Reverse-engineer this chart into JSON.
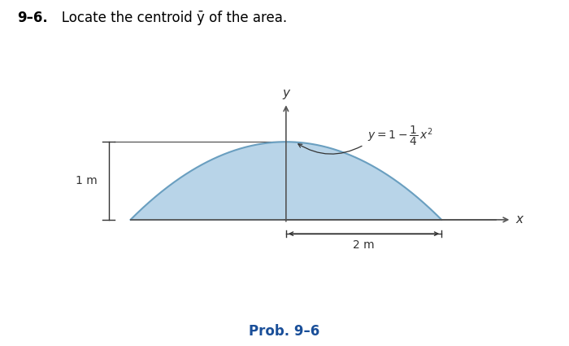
{
  "title_bold": "9–6.",
  "title_rest": "   Locate the centroid ȳ of the area.",
  "prob_label": "Prob. 9–6",
  "dim_label_y": "1 m",
  "dim_label_x": "2 m",
  "axis_label_x": "x",
  "axis_label_y": "y",
  "fill_color": "#b8d4e8",
  "curve_color": "#6a9fc0",
  "line_color": "#555555",
  "dim_color": "#333333",
  "background_color": "#ffffff",
  "title_color": "#000000",
  "prob_color": "#1a4f99",
  "fig_width": 7.0,
  "fig_height": 4.25,
  "dpi": 100
}
